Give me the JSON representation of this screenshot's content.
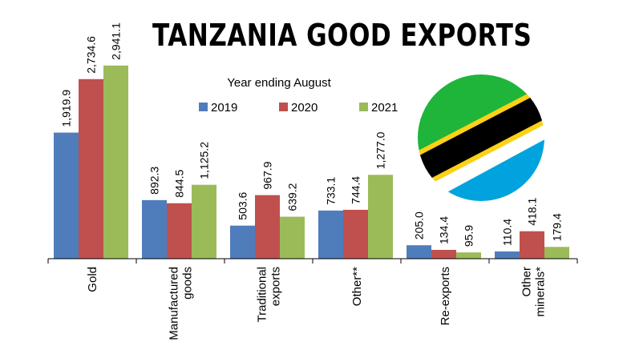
{
  "chart_data": {
    "type": "bar",
    "title": "TANZANIA GOOD EXPORTS",
    "subtitle": "Year ending August",
    "categories": [
      [
        "Gold"
      ],
      [
        "Manufactured",
        "goods"
      ],
      [
        "Traditional",
        "exports"
      ],
      [
        "Other**"
      ],
      [
        "Re-exports"
      ],
      [
        "Other",
        "minerals*"
      ]
    ],
    "series": [
      {
        "name": "2019",
        "color": "#4f7dbc",
        "values": [
          1919.9,
          892.3,
          503.6,
          733.1,
          205.0,
          110.4
        ],
        "labels": [
          "1,919.9",
          "892.3",
          "503.6",
          "733.1",
          "205.0",
          "110.4"
        ]
      },
      {
        "name": "2020",
        "color": "#c0504d",
        "values": [
          2734.6,
          844.5,
          967.9,
          744.4,
          134.4,
          418.1
        ],
        "labels": [
          "2,734.6",
          "844.5",
          "967.9",
          "744.4",
          "134.4",
          "418.1"
        ]
      },
      {
        "name": "2021",
        "color": "#9bbb59",
        "values": [
          2941.1,
          1125.2,
          639.2,
          1277.0,
          95.9,
          179.4
        ],
        "labels": [
          "2,941.1",
          "1,125.2",
          "639.2",
          "1,277.0",
          "95.9",
          "179.4"
        ]
      }
    ],
    "ylim": [
      0,
      3000
    ],
    "legend_position": "top-center",
    "grid": false
  },
  "flag": {
    "name": "tanzania-flag-icon",
    "colors": {
      "green": "#1eb53a",
      "yellow": "#fcd116",
      "black": "#000000",
      "blue": "#00a3dd"
    }
  }
}
